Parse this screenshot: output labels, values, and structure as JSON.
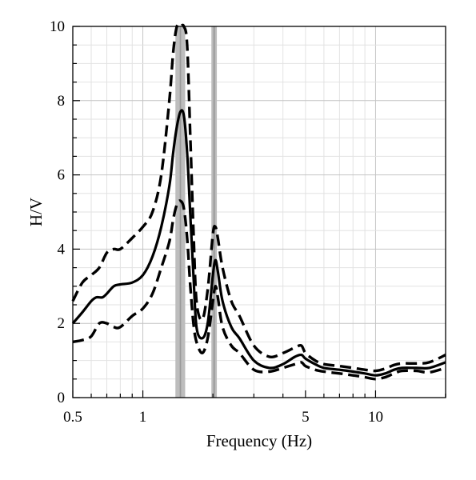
{
  "chart_data": {
    "type": "line",
    "xlabel": "Frequency (Hz)",
    "ylabel": "H/V",
    "x_scale": "log",
    "xlim": [
      0.5,
      20
    ],
    "ylim": [
      0,
      10
    ],
    "x_tick_labels": [
      {
        "value": 0.5,
        "label": "0.5"
      },
      {
        "value": 1,
        "label": "1"
      },
      {
        "value": 5,
        "label": "5"
      },
      {
        "value": 10,
        "label": "10"
      }
    ],
    "y_tick_labels": [
      "0",
      "2",
      "4",
      "6",
      "8",
      "10"
    ],
    "grid": true,
    "peak_bands": [
      {
        "x0": 1.38,
        "x1": 1.52,
        "core0": 1.44,
        "core1": 1.46
      },
      {
        "x0": 1.97,
        "x1": 2.08,
        "core0": 2.01,
        "core1": 2.04
      }
    ],
    "series": [
      {
        "style": "solid",
        "x": [
          0.5,
          0.55,
          0.6,
          0.63,
          0.67,
          0.7,
          0.75,
          0.8,
          0.9,
          1.0,
          1.1,
          1.2,
          1.3,
          1.35,
          1.4,
          1.45,
          1.5,
          1.55,
          1.6,
          1.65,
          1.7,
          1.8,
          1.9,
          2.0,
          2.05,
          2.1,
          2.2,
          2.4,
          2.6,
          3.0,
          3.5,
          4.0,
          4.5,
          4.8,
          5.0,
          5.5,
          6.0,
          7.0,
          8.0,
          9.0,
          10.0,
          11.0,
          12.0,
          13.0,
          15.0,
          17.0,
          20.0
        ],
        "y": [
          2.0,
          2.3,
          2.6,
          2.7,
          2.7,
          2.8,
          3.0,
          3.05,
          3.1,
          3.3,
          3.8,
          4.6,
          5.7,
          6.6,
          7.3,
          7.7,
          7.6,
          6.6,
          4.9,
          3.3,
          1.9,
          1.6,
          2.0,
          3.3,
          3.7,
          3.4,
          2.6,
          1.9,
          1.6,
          1.0,
          0.8,
          0.9,
          1.1,
          1.15,
          1.05,
          0.9,
          0.8,
          0.75,
          0.7,
          0.65,
          0.6,
          0.65,
          0.75,
          0.8,
          0.8,
          0.8,
          0.95
        ]
      },
      {
        "style": "dashed",
        "x": [
          0.5,
          0.55,
          0.6,
          0.65,
          0.7,
          0.75,
          0.8,
          0.9,
          1.0,
          1.1,
          1.2,
          1.3,
          1.35,
          1.4,
          1.45,
          1.5,
          1.55,
          1.6,
          1.65,
          1.7,
          1.8,
          1.9,
          2.0,
          2.05,
          2.1,
          2.2,
          2.4,
          2.6,
          3.0,
          3.5,
          4.0,
          4.5,
          4.8,
          5.0,
          5.5,
          6.0,
          7.0,
          8.0,
          9.0,
          10.0,
          11.0,
          12.0,
          13.0,
          15.0,
          17.0,
          20.0
        ],
        "y": [
          2.6,
          3.1,
          3.3,
          3.5,
          3.9,
          4.0,
          4.0,
          4.3,
          4.6,
          5.0,
          6.0,
          8.0,
          9.3,
          10.0,
          10.0,
          10.0,
          9.5,
          7.0,
          4.5,
          2.6,
          2.1,
          2.9,
          4.4,
          4.6,
          4.3,
          3.5,
          2.6,
          2.2,
          1.4,
          1.1,
          1.2,
          1.35,
          1.4,
          1.2,
          1.0,
          0.9,
          0.85,
          0.8,
          0.75,
          0.72,
          0.78,
          0.88,
          0.92,
          0.92,
          0.95,
          1.15
        ]
      },
      {
        "style": "dashed",
        "x": [
          0.5,
          0.55,
          0.6,
          0.65,
          0.7,
          0.75,
          0.8,
          0.9,
          1.0,
          1.1,
          1.2,
          1.3,
          1.35,
          1.4,
          1.45,
          1.5,
          1.55,
          1.6,
          1.65,
          1.7,
          1.8,
          1.9,
          2.0,
          2.05,
          2.1,
          2.2,
          2.4,
          2.6,
          3.0,
          3.5,
          4.0,
          4.5,
          4.8,
          5.0,
          5.5,
          6.0,
          7.0,
          8.0,
          9.0,
          10.0,
          11.0,
          12.0,
          13.0,
          15.0,
          17.0,
          20.0
        ],
        "y": [
          1.5,
          1.55,
          1.65,
          2.0,
          2.0,
          1.9,
          1.9,
          2.2,
          2.4,
          2.8,
          3.5,
          4.2,
          4.8,
          5.2,
          5.3,
          5.1,
          4.3,
          3.0,
          2.0,
          1.5,
          1.2,
          1.6,
          2.6,
          3.0,
          2.7,
          1.9,
          1.4,
          1.2,
          0.75,
          0.7,
          0.8,
          0.9,
          0.95,
          0.85,
          0.75,
          0.7,
          0.65,
          0.6,
          0.55,
          0.5,
          0.55,
          0.65,
          0.72,
          0.72,
          0.68,
          0.8
        ]
      }
    ]
  }
}
